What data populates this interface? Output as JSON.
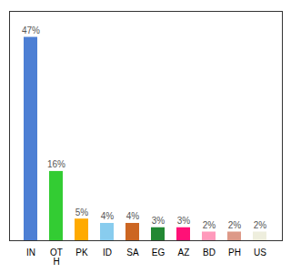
{
  "chart_data": {
    "type": "bar",
    "categories": [
      "IN",
      "OT\nH",
      "PK",
      "ID",
      "SA",
      "EG",
      "AZ",
      "BD",
      "PH",
      "US"
    ],
    "values": [
      47,
      16,
      5,
      4,
      4,
      3,
      3,
      2,
      2,
      2
    ],
    "value_labels": [
      "47%",
      "16%",
      "5%",
      "4%",
      "4%",
      "3%",
      "3%",
      "2%",
      "2%",
      "2%"
    ],
    "colors": [
      "#4d7fd4",
      "#33cc33",
      "#ffaa00",
      "#88ccee",
      "#cc6622",
      "#228833",
      "#ff1177",
      "#ff99bb",
      "#dd9988",
      "#eeeedd"
    ],
    "ylim": [
      0,
      53
    ],
    "data_labels": true,
    "tick_labels": "x",
    "grid": false
  }
}
